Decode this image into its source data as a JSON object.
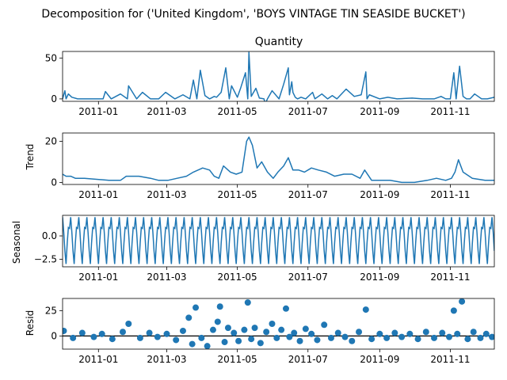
{
  "figure": {
    "suptitle": "Decomposition for ('United Kingdom', 'BOYS VINTAGE TIN SEASIDE BUCKET')"
  },
  "colors": {
    "line": "#1f77b4",
    "axis": "#000000",
    "background": "#ffffff"
  },
  "x_axis": {
    "start": "2010-12-01",
    "end": "2011-12-09",
    "tick_labels": [
      "2011-01",
      "2011-03",
      "2011-05",
      "2011-07",
      "2011-09",
      "2011-11"
    ]
  },
  "chart_data": [
    {
      "type": "line",
      "title": "Quantity",
      "ylabel": "",
      "ylim": [
        -3,
        58
      ],
      "y_ticks": [
        0,
        50
      ],
      "x": [
        "2010-12-01",
        "2010-12-03",
        "2010-12-04",
        "2010-12-06",
        "2010-12-09",
        "2010-12-14",
        "2010-12-20",
        "2011-01-05",
        "2011-01-07",
        "2011-01-12",
        "2011-01-20",
        "2011-01-26",
        "2011-01-27",
        "2011-02-03",
        "2011-02-08",
        "2011-02-15",
        "2011-02-22",
        "2011-02-28",
        "2011-03-08",
        "2011-03-15",
        "2011-03-21",
        "2011-03-24",
        "2011-03-27",
        "2011-03-30",
        "2011-04-03",
        "2011-04-07",
        "2011-04-11",
        "2011-04-13",
        "2011-04-17",
        "2011-04-21",
        "2011-04-24",
        "2011-04-26",
        "2011-05-01",
        "2011-05-04",
        "2011-05-08",
        "2011-05-10",
        "2011-05-11",
        "2011-05-13",
        "2011-05-17",
        "2011-05-20",
        "2011-05-24",
        "2011-05-25",
        "2011-05-27",
        "2011-05-31",
        "2011-06-06",
        "2011-06-10",
        "2011-06-14",
        "2011-06-15",
        "2011-06-17",
        "2011-06-18",
        "2011-06-20",
        "2011-06-22",
        "2011-06-25",
        "2011-06-29",
        "2011-07-05",
        "2011-07-07",
        "2011-07-13",
        "2011-07-18",
        "2011-07-22",
        "2011-07-26",
        "2011-08-03",
        "2011-08-10",
        "2011-08-16",
        "2011-08-20",
        "2011-08-21",
        "2011-08-23",
        "2011-09-01",
        "2011-09-08",
        "2011-09-16",
        "2011-09-29",
        "2011-10-08",
        "2011-10-18",
        "2011-10-24",
        "2011-10-28",
        "2011-11-01",
        "2011-11-04",
        "2011-11-06",
        "2011-11-09",
        "2011-11-12",
        "2011-11-15",
        "2011-11-18",
        "2011-11-22",
        "2011-11-28",
        "2011-12-03",
        "2011-12-09"
      ],
      "values": [
        0,
        10,
        0,
        6,
        2,
        0,
        0,
        0,
        9,
        0,
        6,
        0,
        16,
        0,
        8,
        0,
        0,
        8,
        0,
        5,
        0,
        23,
        0,
        35,
        4,
        0,
        3,
        2,
        8,
        38,
        0,
        16,
        2,
        14,
        32,
        0,
        57,
        3,
        13,
        1,
        0,
        -6,
        0,
        10,
        0,
        18,
        38,
        5,
        21,
        8,
        2,
        0,
        2,
        0,
        8,
        0,
        6,
        0,
        4,
        0,
        12,
        3,
        5,
        33,
        0,
        5,
        0,
        2,
        0,
        1,
        0,
        0,
        3,
        0,
        0,
        32,
        0,
        40,
        3,
        0,
        0,
        6,
        0,
        0,
        2
      ]
    },
    {
      "type": "line",
      "title": "",
      "ylabel": "Trend",
      "ylim": [
        -1,
        24
      ],
      "y_ticks": [
        0,
        20
      ],
      "x": [
        "2010-12-01",
        "2010-12-04",
        "2010-12-08",
        "2010-12-12",
        "2010-12-20",
        "2011-01-10",
        "2011-01-20",
        "2011-01-25",
        "2011-02-05",
        "2011-02-15",
        "2011-02-22",
        "2011-03-02",
        "2011-03-10",
        "2011-03-18",
        "2011-03-24",
        "2011-04-01",
        "2011-04-07",
        "2011-04-11",
        "2011-04-15",
        "2011-04-19",
        "2011-04-25",
        "2011-04-30",
        "2011-05-05",
        "2011-05-09",
        "2011-05-11",
        "2011-05-14",
        "2011-05-18",
        "2011-05-22",
        "2011-05-27",
        "2011-06-01",
        "2011-06-05",
        "2011-06-10",
        "2011-06-14",
        "2011-06-18",
        "2011-06-23",
        "2011-06-28",
        "2011-07-04",
        "2011-07-10",
        "2011-07-17",
        "2011-07-24",
        "2011-08-01",
        "2011-08-08",
        "2011-08-15",
        "2011-08-19",
        "2011-08-25",
        "2011-09-01",
        "2011-09-10",
        "2011-09-20",
        "2011-10-01",
        "2011-10-12",
        "2011-10-20",
        "2011-10-28",
        "2011-11-02",
        "2011-11-05",
        "2011-11-08",
        "2011-11-12",
        "2011-11-20",
        "2011-12-01",
        "2011-12-09"
      ],
      "values": [
        4,
        3,
        3,
        2,
        2,
        1,
        1,
        3,
        3,
        2,
        1,
        1,
        2,
        3,
        5,
        7,
        6,
        3,
        2,
        8,
        5,
        4,
        5,
        20,
        22,
        18,
        7,
        10,
        5,
        2,
        5,
        8,
        12,
        6,
        6,
        5,
        7,
        6,
        5,
        3,
        4,
        4,
        2,
        6,
        1,
        1,
        1,
        0,
        0,
        1,
        2,
        1,
        2,
        5,
        11,
        5,
        2,
        1,
        1
      ]
    },
    {
      "type": "line",
      "title": "",
      "ylabel": "Seasonal",
      "ylim": [
        -3.3,
        2.2
      ],
      "y_ticks": [
        -2.5,
        0.0
      ],
      "y_tick_labels": [
        "−2.5",
        "0.0"
      ],
      "period_days": 7,
      "pattern": [
        2.0,
        0.4,
        -1.6,
        -3.0,
        -0.8,
        0.9,
        0.8
      ]
    },
    {
      "type": "scatter",
      "title": "",
      "ylabel": "Resid",
      "ylim": [
        -13,
        37
      ],
      "y_ticks": [
        0,
        25
      ],
      "baseline": 0,
      "x": [
        "2010-12-02",
        "2010-12-10",
        "2010-12-18",
        "2010-12-28",
        "2011-01-04",
        "2011-01-13",
        "2011-01-22",
        "2011-01-27",
        "2011-02-06",
        "2011-02-14",
        "2011-02-21",
        "2011-03-01",
        "2011-03-09",
        "2011-03-15",
        "2011-03-20",
        "2011-03-23",
        "2011-03-26",
        "2011-03-31",
        "2011-04-05",
        "2011-04-10",
        "2011-04-14",
        "2011-04-16",
        "2011-04-20",
        "2011-04-23",
        "2011-04-28",
        "2011-05-02",
        "2011-05-07",
        "2011-05-10",
        "2011-05-13",
        "2011-05-16",
        "2011-05-21",
        "2011-05-26",
        "2011-05-31",
        "2011-06-04",
        "2011-06-08",
        "2011-06-12",
        "2011-06-15",
        "2011-06-19",
        "2011-06-24",
        "2011-06-29",
        "2011-07-04",
        "2011-07-09",
        "2011-07-15",
        "2011-07-21",
        "2011-07-27",
        "2011-08-02",
        "2011-08-08",
        "2011-08-14",
        "2011-08-20",
        "2011-08-25",
        "2011-09-01",
        "2011-09-07",
        "2011-09-14",
        "2011-09-20",
        "2011-09-27",
        "2011-10-04",
        "2011-10-11",
        "2011-10-18",
        "2011-10-25",
        "2011-10-31",
        "2011-11-04",
        "2011-11-07",
        "2011-11-11",
        "2011-11-16",
        "2011-11-21",
        "2011-11-27",
        "2011-12-02",
        "2011-12-07"
      ],
      "values": [
        5,
        -2,
        3,
        -1,
        2,
        -3,
        4,
        12,
        -2,
        3,
        -1,
        2,
        -4,
        5,
        18,
        -8,
        28,
        -2,
        -10,
        6,
        14,
        29,
        -6,
        8,
        3,
        -5,
        6,
        33,
        -3,
        8,
        -7,
        4,
        12,
        -2,
        6,
        27,
        -1,
        3,
        -5,
        7,
        2,
        -4,
        11,
        -2,
        3,
        -1,
        -5,
        4,
        26,
        -3,
        2,
        -2,
        3,
        -1,
        2,
        -3,
        4,
        -2,
        3,
        -1,
        25,
        2,
        34,
        -3,
        4,
        -2,
        2,
        -1
      ]
    }
  ]
}
